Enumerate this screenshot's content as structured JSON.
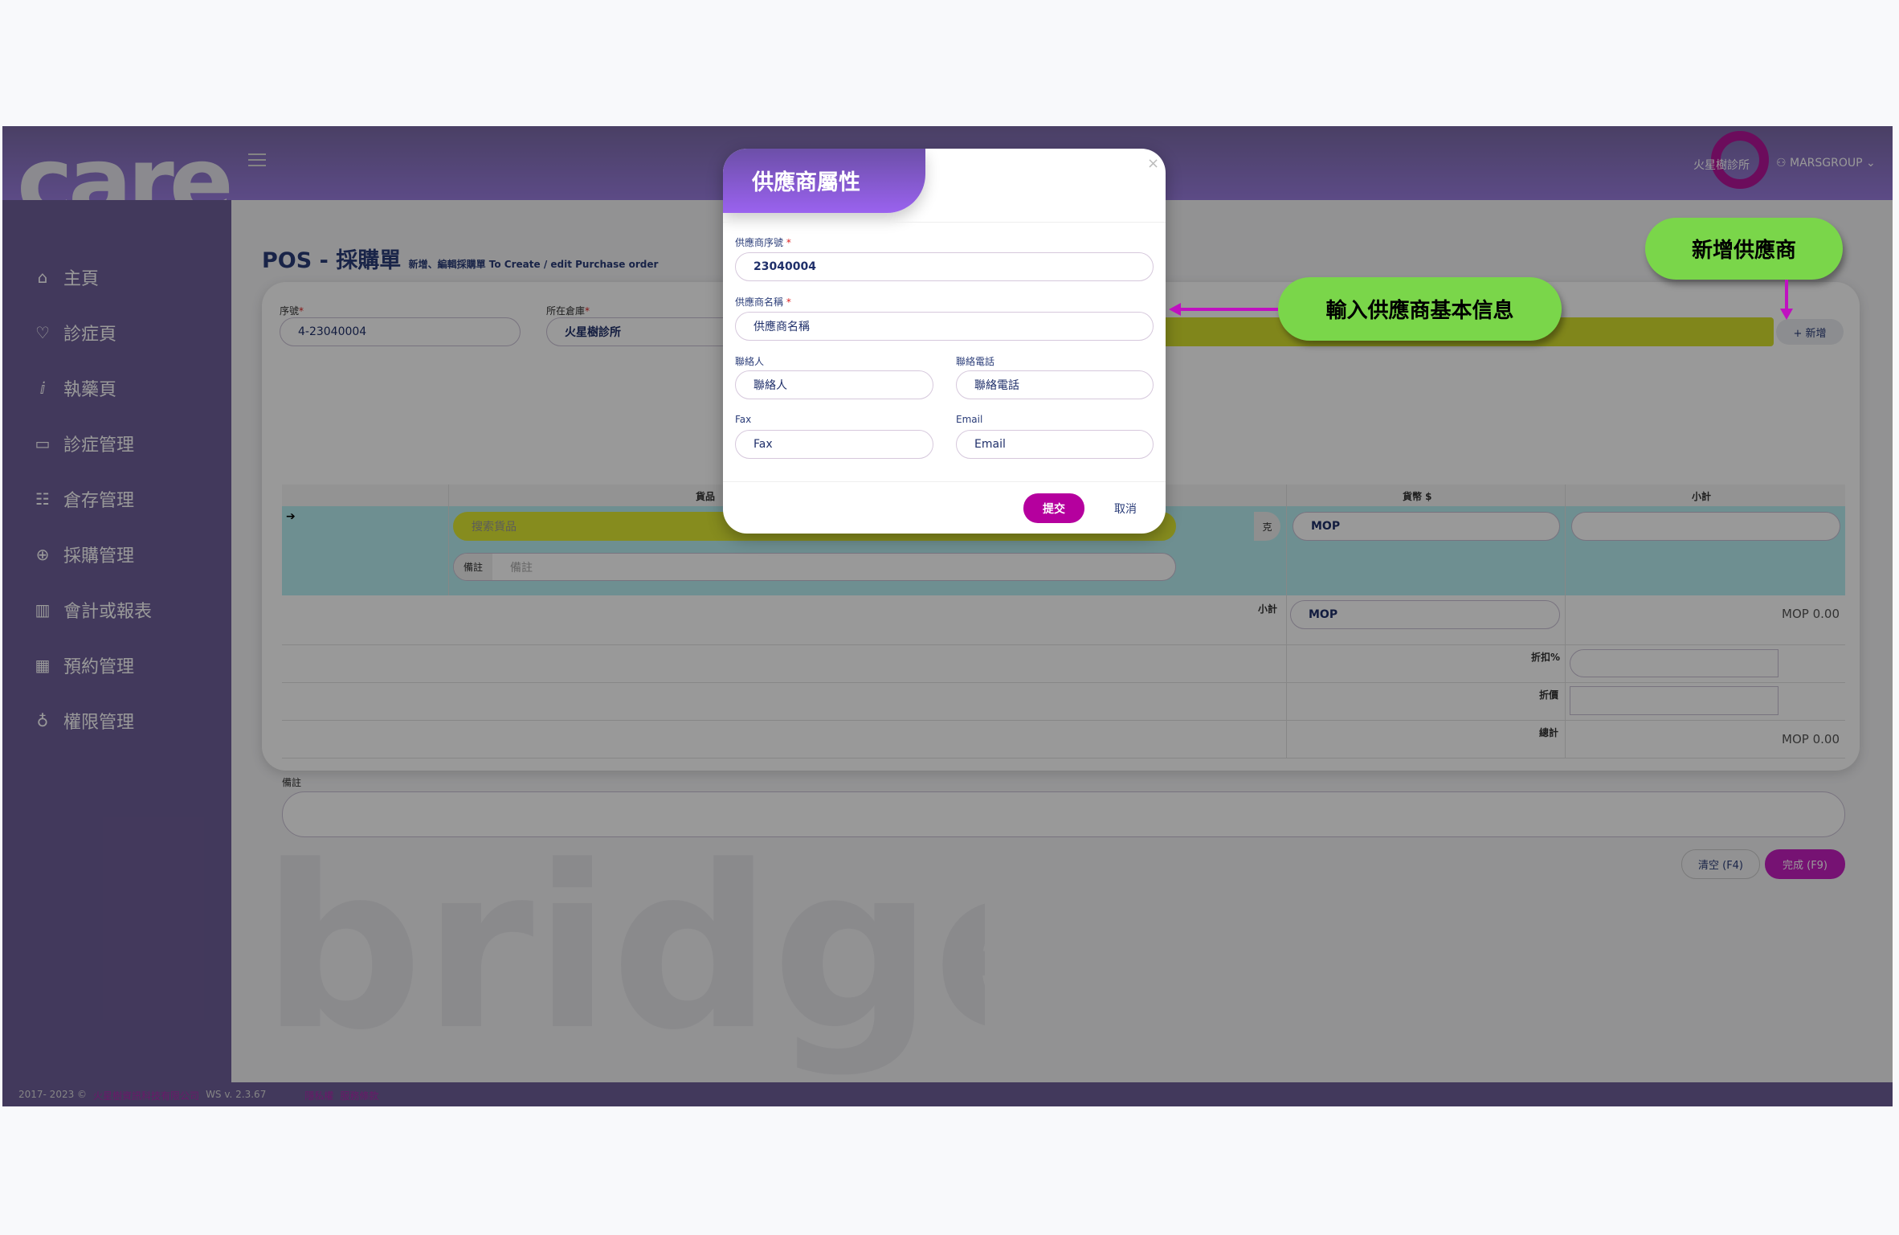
{
  "app": {
    "logo": "care",
    "watermark": "bridge"
  },
  "header": {
    "clinic": "火星樹診所",
    "user": "MARSGROUP"
  },
  "sidebar": {
    "items": [
      {
        "label": "主頁",
        "icon": "home-icon"
      },
      {
        "label": "診症頁",
        "icon": "heart-icon"
      },
      {
        "label": "執藥頁",
        "icon": "flask-icon"
      },
      {
        "label": "診症管理",
        "icon": "card-icon"
      },
      {
        "label": "倉存管理",
        "icon": "boxes-icon"
      },
      {
        "label": "採購管理",
        "icon": "plus-circle-icon"
      },
      {
        "label": "會計或報表",
        "icon": "bar-chart-icon"
      },
      {
        "label": "預約管理",
        "icon": "calendar-icon"
      },
      {
        "label": "權限管理",
        "icon": "bulb-icon"
      }
    ]
  },
  "page": {
    "title": "POS - 採購單",
    "subtitle": "新增、編輯採購單 To Create / edit Purchase order"
  },
  "form": {
    "serial_label": "序號",
    "serial_value": "4-23040004",
    "warehouse_label": "所在倉庫",
    "warehouse_value": "火星樹診所",
    "add_supplier_label": "+ 新增",
    "columns": [
      "貨品",
      "貨幣 $",
      "小計"
    ],
    "item_search_placeholder": "搜索貨品",
    "note_addon": "備註",
    "note_placeholder": "備註",
    "unit": "克",
    "currency": "MOP",
    "subtotal_label": "小計",
    "subtotal_currency": "MOP",
    "subtotal_value": "MOP 0.00",
    "discount_pct_label": "折扣%",
    "discount_label": "折價",
    "total_label": "總計",
    "total_value": "MOP 0.00",
    "remarks_label": "備註",
    "clear_button": "清空 (F4)",
    "done_button": "完成 (F9)"
  },
  "modal": {
    "title": "供應商屬性",
    "supplier_no_label": "供應商序號",
    "supplier_no_value": "23040004",
    "supplier_name_label": "供應商名稱",
    "supplier_name_placeholder": "供應商名稱",
    "contact_label": "聯絡人",
    "contact_placeholder": "聯絡人",
    "phone_label": "聯絡電話",
    "phone_placeholder": "聯絡電話",
    "fax_label": "Fax",
    "fax_placeholder": "Fax",
    "email_label": "Email",
    "email_placeholder": "Email",
    "submit": "提交",
    "cancel": "取消"
  },
  "callouts": {
    "add_supplier": "新增供應商",
    "enter_info": "輸入供應商基本信息",
    "arrow_color": "#c010c0"
  },
  "footer": {
    "copyright": "2017- 2023 ©",
    "company": "火星樹資訊科技有限公司",
    "version": "WS v. 2.3.67",
    "privacy": "隱私權",
    "terms": "服務條款"
  },
  "colors": {
    "primary": "#7b5bd0",
    "accent": "#b5009e",
    "callout": "#7ad64a"
  }
}
